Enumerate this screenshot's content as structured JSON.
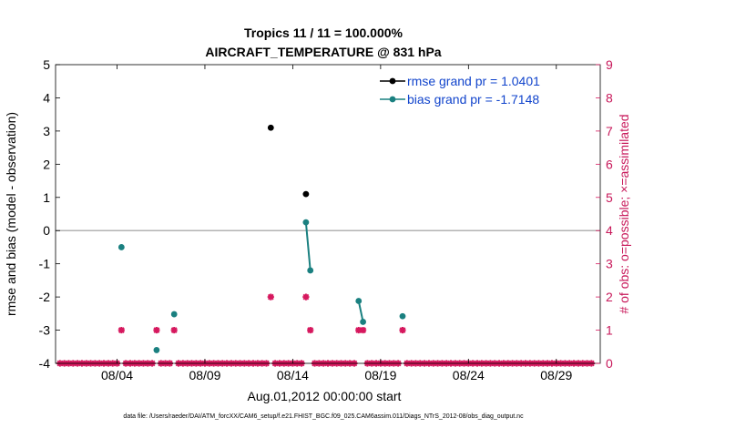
{
  "chart_data": {
    "type": "scatter",
    "title_line1": "Tropics 11 / 11 = 100.000%",
    "title_line2": "AIRCRAFT_TEMPERATURE @ 831 hPa",
    "ylabel_left": "rmse and bias (model - observation)",
    "ylabel_right": "# of obs: o=possible; ×=assimilated",
    "xlabel": "Aug.01,2012 00:00:00 start",
    "footnote": "data file: /Users/raeder/DAI/ATM_forcXX/CAM6_setup/f.e21.FHIST_BGC.f09_025.CAM6assim.011/Diags_NTrS_2012-08/obs_diag_output.nc",
    "xlim": [
      0.5,
      31.5
    ],
    "ylim_left": [
      -4,
      5
    ],
    "ylim_right": [
      0,
      9
    ],
    "left_ticks": [
      -4,
      -3,
      -2,
      -1,
      0,
      1,
      2,
      3,
      4,
      5
    ],
    "right_ticks": [
      0,
      1,
      2,
      3,
      4,
      5,
      6,
      7,
      8,
      9
    ],
    "x_ticks": [
      {
        "x": 4,
        "label": "08/04"
      },
      {
        "x": 9,
        "label": "08/09"
      },
      {
        "x": 14,
        "label": "08/14"
      },
      {
        "x": 19,
        "label": "08/19"
      },
      {
        "x": 24,
        "label": "08/24"
      },
      {
        "x": 29,
        "label": "08/29"
      }
    ],
    "zero_line": 0,
    "colors": {
      "rmse": "#000000",
      "bias": "#1a8080",
      "obs": "#d6185e",
      "legend_text": "#1144cc",
      "zero": "#b3b3b3"
    },
    "legend": [
      {
        "key": "rmse",
        "label": "rmse grand pr = 1.0401"
      },
      {
        "key": "bias",
        "label": "bias grand pr = -1.7148"
      }
    ],
    "rmse_segments": [
      [
        [
          12.75,
          3.1
        ]
      ],
      [
        [
          14.75,
          1.1
        ]
      ]
    ],
    "bias_segments": [
      [
        [
          4.25,
          -0.5
        ]
      ],
      [
        [
          6.25,
          -3.6
        ]
      ],
      [
        [
          7.25,
          -2.52
        ]
      ],
      [
        [
          14.75,
          0.25
        ],
        [
          15.0,
          -1.2
        ]
      ],
      [
        [
          17.75,
          -2.12
        ],
        [
          18.0,
          -2.75
        ]
      ],
      [
        [
          20.25,
          -2.58
        ]
      ]
    ],
    "obs_count_x": [
      0.75,
      1.0,
      1.25,
      1.5,
      1.75,
      2.0,
      2.25,
      2.5,
      2.75,
      3.0,
      3.25,
      3.5,
      3.75,
      4.0,
      4.25,
      4.5,
      4.75,
      5.0,
      5.25,
      5.5,
      5.75,
      6.0,
      6.25,
      6.5,
      6.75,
      7.0,
      7.25,
      7.5,
      7.75,
      8.0,
      8.25,
      8.5,
      8.75,
      9.0,
      9.25,
      9.5,
      9.75,
      10.0,
      10.25,
      10.5,
      10.75,
      11.0,
      11.25,
      11.5,
      11.75,
      12.0,
      12.25,
      12.5,
      12.75,
      13.0,
      13.25,
      13.5,
      13.75,
      14.0,
      14.25,
      14.5,
      14.75,
      15.0,
      15.25,
      15.5,
      15.75,
      16.0,
      16.25,
      16.5,
      16.75,
      17.0,
      17.25,
      17.5,
      17.75,
      18.0,
      18.25,
      18.5,
      18.75,
      19.0,
      19.25,
      19.5,
      19.75,
      20.0,
      20.25,
      20.5,
      20.75,
      21.0,
      21.25,
      21.5,
      21.75,
      22.0,
      22.25,
      22.5,
      22.75,
      23.0,
      23.25,
      23.5,
      23.75,
      24.0,
      24.25,
      24.5,
      24.75,
      25.0,
      25.25,
      25.5,
      25.75,
      26.0,
      26.25,
      26.5,
      26.75,
      27.0,
      27.25,
      27.5,
      27.75,
      28.0,
      28.25,
      28.5,
      28.75,
      29.0,
      29.25,
      29.5,
      29.75,
      30.0,
      30.25,
      30.5,
      30.75,
      31.0,
      31.25
    ],
    "obs_count_y": [
      0,
      0,
      0,
      0,
      0,
      0,
      0,
      0,
      0,
      0,
      0,
      0,
      0,
      0,
      1,
      0,
      0,
      0,
      0,
      0,
      0,
      0,
      1,
      0,
      0,
      0,
      1,
      0,
      0,
      0,
      0,
      0,
      0,
      0,
      0,
      0,
      0,
      0,
      0,
      0,
      0,
      0,
      0,
      0,
      0,
      0,
      0,
      0,
      2,
      0,
      0,
      0,
      0,
      0,
      0,
      0,
      2,
      1,
      0,
      0,
      0,
      0,
      0,
      0,
      0,
      0,
      0,
      0,
      1,
      1,
      0,
      0,
      0,
      0,
      0,
      0,
      0,
      0,
      1,
      0,
      0,
      0,
      0,
      0,
      0,
      0,
      0,
      0,
      0,
      0,
      0,
      0,
      0,
      0,
      0,
      0,
      0,
      0,
      0,
      0,
      0,
      0,
      0,
      0,
      0,
      0,
      0,
      0,
      0,
      0,
      0,
      0,
      0,
      0,
      0,
      0,
      0,
      0,
      0,
      0,
      0,
      0
    ]
  }
}
